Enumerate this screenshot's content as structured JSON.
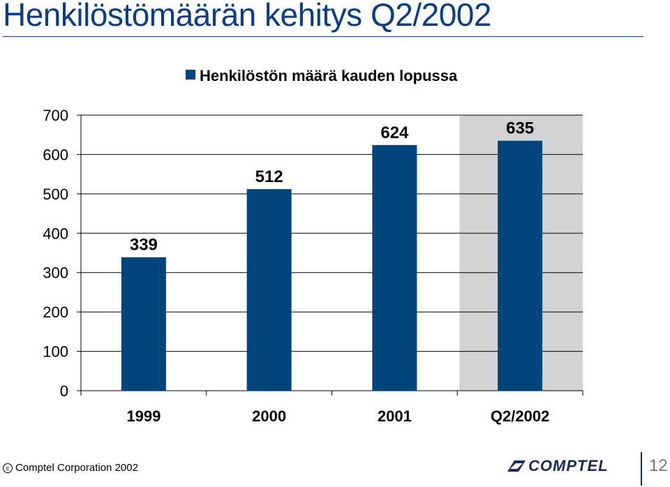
{
  "slide": {
    "title": "Henkilöstömäärän kehitys Q2/2002",
    "footer_copyright": "Comptel Corporation 2002",
    "copyright_symbol": "c",
    "logo_text": "COMPTEL",
    "page_number": "12"
  },
  "chart_data": {
    "type": "bar",
    "categories": [
      "1999",
      "2000",
      "2001",
      "Q2/2002"
    ],
    "series": [
      {
        "name": "Henkilöstön määrä kauden lopussa",
        "values": [
          339,
          512,
          624,
          635
        ]
      }
    ],
    "data_labels": [
      "339",
      "512",
      "624",
      "635"
    ],
    "ylim": [
      0,
      700
    ],
    "yticks": [
      0,
      100,
      200,
      300,
      400,
      500,
      600,
      700
    ],
    "grid": true,
    "legend_position": "top",
    "highlight_category": "Q2/2002",
    "colors": {
      "bar": "#00447c",
      "highlight_background": "#d3d3d3",
      "gridline": "#000000",
      "title": "#0b3c86"
    }
  }
}
